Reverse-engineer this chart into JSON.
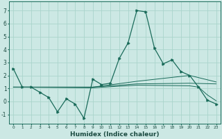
{
  "xlabel": "Humidex (Indice chaleur)",
  "background_color": "#cce8e4",
  "grid_color": "#aad4cc",
  "line_color": "#1a6b5a",
  "xlim": [
    -0.5,
    23.5
  ],
  "ylim": [
    -1.7,
    7.7
  ],
  "xticks": [
    0,
    1,
    2,
    3,
    4,
    5,
    6,
    7,
    8,
    9,
    10,
    11,
    12,
    13,
    14,
    15,
    16,
    17,
    18,
    19,
    20,
    21,
    22,
    23
  ],
  "yticks": [
    -1,
    0,
    1,
    2,
    3,
    4,
    5,
    6,
    7
  ],
  "main_series": {
    "x": [
      0,
      1,
      2,
      3,
      4,
      5,
      6,
      7,
      8,
      9,
      10,
      11,
      12,
      13,
      14,
      15,
      16,
      17,
      18,
      19,
      20,
      21,
      22,
      23
    ],
    "y": [
      2.5,
      1.1,
      1.1,
      0.7,
      0.3,
      -0.8,
      0.2,
      -0.2,
      -1.3,
      1.7,
      1.3,
      1.4,
      3.3,
      4.5,
      7.0,
      6.9,
      4.1,
      2.9,
      3.2,
      2.3,
      2.0,
      1.1,
      0.1,
      -0.2
    ]
  },
  "secondary_series": [
    {
      "x": [
        0,
        9,
        14,
        20,
        23
      ],
      "y": [
        1.1,
        1.1,
        1.55,
        2.0,
        1.5
      ]
    },
    {
      "x": [
        0,
        9,
        14,
        20,
        23
      ],
      "y": [
        1.1,
        1.1,
        1.35,
        1.4,
        1.35
      ]
    },
    {
      "x": [
        0,
        9,
        14,
        20,
        21,
        22,
        23
      ],
      "y": [
        1.1,
        1.05,
        1.25,
        1.2,
        1.1,
        0.5,
        0.05
      ]
    }
  ]
}
